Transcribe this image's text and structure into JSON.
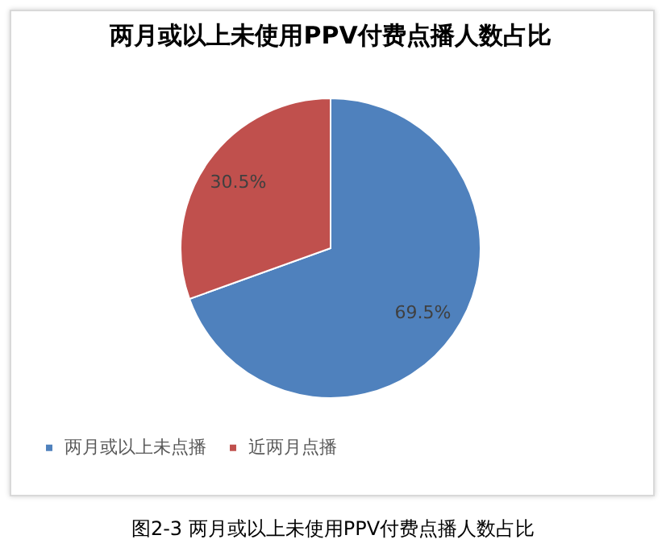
{
  "chart_data": {
    "type": "pie",
    "title": "两月或以上未使用PPV付费点播人数占比",
    "categories": [
      "两月或以上未点播",
      "近两月点播"
    ],
    "values": [
      69.5,
      30.5
    ],
    "colors": [
      "#4f81bd",
      "#c0504d"
    ],
    "value_labels": [
      "69.5%",
      "30.5%"
    ],
    "legend": "bottom",
    "annotations": [
      "图2-3 两月或以上未使用PPV付费点播人数占比"
    ]
  }
}
